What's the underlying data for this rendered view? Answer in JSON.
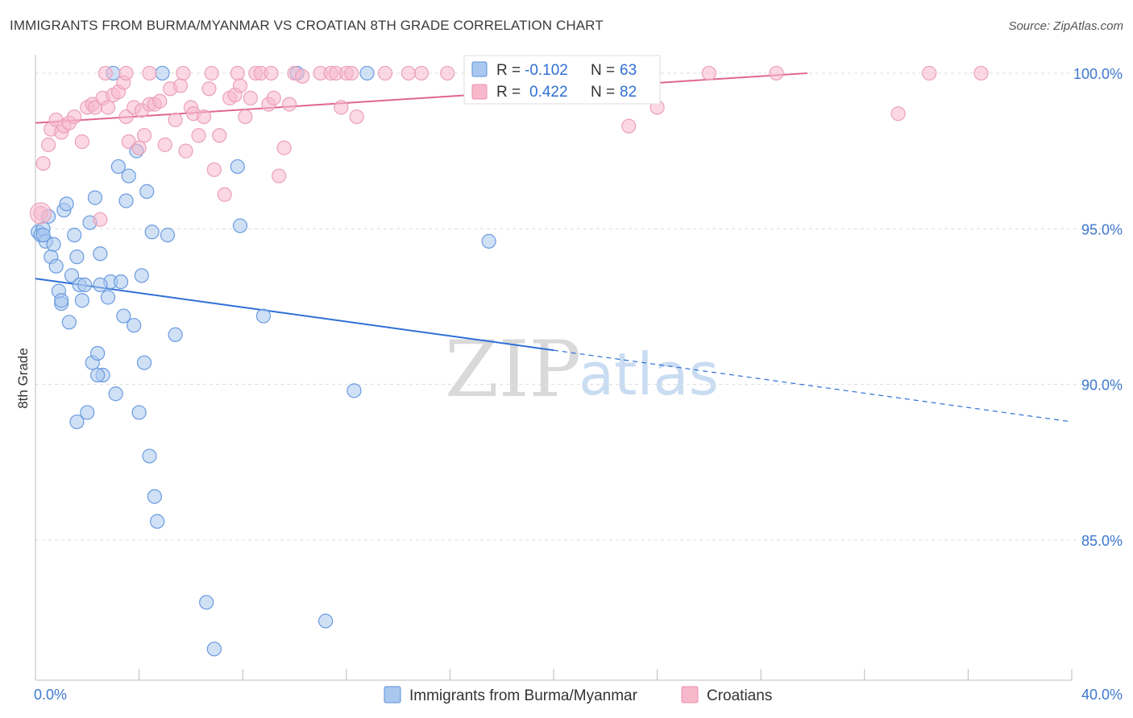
{
  "title": "IMMIGRANTS FROM BURMA/MYANMAR VS CROATIAN 8TH GRADE CORRELATION CHART",
  "source": "Source: ZipAtlas.com",
  "watermark": {
    "zip": "ZIP",
    "atlas": "atlas"
  },
  "colors": {
    "blue": "#2f6fd6",
    "blue_fill": "#aac8ef",
    "pink": "#e0668e",
    "pink_fill": "#f7b8cc",
    "grid": "#dddddd",
    "axis": "#bbbbbb"
  },
  "stats": [
    {
      "r_label": "R =",
      "r_value": "-0.102",
      "n_label": "N =",
      "n_value": "63"
    },
    {
      "r_label": "R =",
      "r_value": "0.422",
      "n_label": "N =",
      "n_value": "82"
    }
  ],
  "chart_data": {
    "type": "scatter",
    "title": "IMMIGRANTS FROM BURMA/MYANMAR VS CROATIAN 8TH GRADE CORRELATION CHART",
    "xlabel": "",
    "ylabel": "8th Grade",
    "xlim": [
      0,
      40
    ],
    "ylim": [
      80.5,
      100.8
    ],
    "x_tick_labels": [
      "0.0%",
      "40.0%"
    ],
    "y_ticks": [
      85,
      90,
      95,
      100
    ],
    "y_tick_labels": [
      "85.0%",
      "90.0%",
      "95.0%",
      "100.0%"
    ],
    "legend": [
      "Immigrants from Burma/Myanmar",
      "Croatians"
    ],
    "series": [
      {
        "name": "Immigrants from Burma/Myanmar",
        "trend": {
          "x0": 0,
          "y0": 93.4,
          "x1": 20,
          "y1": 91.1,
          "dashed_to_x": 40,
          "dashed_to_y": 88.8
        },
        "points": [
          [
            3.0,
            100
          ],
          [
            4.9,
            100
          ],
          [
            10.1,
            100
          ],
          [
            12.8,
            100
          ],
          [
            0.1,
            94.9
          ],
          [
            0.2,
            94.8
          ],
          [
            0.3,
            95.0
          ],
          [
            0.4,
            94.6
          ],
          [
            0.5,
            95.4
          ],
          [
            0.6,
            94.1
          ],
          [
            0.7,
            94.5
          ],
          [
            0.8,
            93.8
          ],
          [
            0.9,
            93.0
          ],
          [
            1.0,
            92.6
          ],
          [
            1.1,
            95.6
          ],
          [
            1.2,
            95.8
          ],
          [
            1.3,
            92.0
          ],
          [
            1.4,
            93.5
          ],
          [
            1.5,
            94.8
          ],
          [
            1.6,
            94.1
          ],
          [
            1.7,
            93.2
          ],
          [
            1.8,
            92.7
          ],
          [
            1.9,
            93.2
          ],
          [
            2.0,
            89.1
          ],
          [
            2.1,
            95.2
          ],
          [
            2.2,
            90.7
          ],
          [
            2.3,
            96.0
          ],
          [
            2.4,
            91.0
          ],
          [
            2.5,
            94.2
          ],
          [
            2.6,
            90.3
          ],
          [
            2.8,
            92.8
          ],
          [
            2.9,
            93.3
          ],
          [
            3.1,
            89.7
          ],
          [
            3.2,
            97.0
          ],
          [
            3.3,
            93.3
          ],
          [
            3.4,
            92.2
          ],
          [
            3.5,
            95.9
          ],
          [
            3.6,
            96.7
          ],
          [
            3.8,
            91.9
          ],
          [
            3.9,
            97.5
          ],
          [
            4.0,
            89.1
          ],
          [
            4.1,
            93.5
          ],
          [
            4.2,
            90.7
          ],
          [
            4.3,
            96.2
          ],
          [
            4.4,
            87.7
          ],
          [
            4.5,
            94.9
          ],
          [
            4.6,
            86.4
          ],
          [
            4.7,
            85.6
          ],
          [
            5.1,
            94.8
          ],
          [
            5.4,
            91.6
          ],
          [
            6.6,
            83.0
          ],
          [
            6.9,
            81.5
          ],
          [
            7.8,
            97.0
          ],
          [
            7.9,
            95.1
          ],
          [
            8.8,
            92.2
          ],
          [
            11.2,
            82.4
          ],
          [
            12.3,
            89.8
          ],
          [
            17.5,
            94.6
          ],
          [
            1.6,
            88.8
          ],
          [
            2.4,
            90.3
          ],
          [
            0.3,
            94.8
          ],
          [
            1.0,
            92.7
          ],
          [
            2.5,
            93.2
          ]
        ]
      },
      {
        "name": "Croatians",
        "trend": {
          "x0": 0,
          "y0": 98.4,
          "x1": 29.8,
          "y1": 100.0
        },
        "points": [
          [
            0.2,
            95.5
          ],
          [
            0.3,
            97.1
          ],
          [
            0.5,
            97.7
          ],
          [
            0.6,
            98.2
          ],
          [
            0.8,
            98.5
          ],
          [
            1.0,
            98.1
          ],
          [
            1.1,
            98.3
          ],
          [
            1.3,
            98.4
          ],
          [
            1.5,
            98.6
          ],
          [
            1.8,
            97.8
          ],
          [
            2.0,
            98.9
          ],
          [
            2.2,
            99.0
          ],
          [
            2.3,
            98.9
          ],
          [
            2.5,
            95.3
          ],
          [
            2.6,
            99.2
          ],
          [
            2.8,
            98.9
          ],
          [
            3.0,
            99.3
          ],
          [
            3.2,
            99.4
          ],
          [
            3.4,
            99.7
          ],
          [
            3.5,
            98.6
          ],
          [
            3.6,
            97.8
          ],
          [
            3.8,
            98.9
          ],
          [
            4.0,
            97.6
          ],
          [
            4.1,
            98.8
          ],
          [
            4.2,
            98.0
          ],
          [
            4.4,
            99.0
          ],
          [
            4.6,
            99.0
          ],
          [
            4.8,
            99.1
          ],
          [
            5.0,
            97.7
          ],
          [
            5.2,
            99.5
          ],
          [
            5.4,
            98.5
          ],
          [
            5.6,
            99.6
          ],
          [
            5.8,
            97.5
          ],
          [
            6.0,
            98.9
          ],
          [
            6.1,
            98.7
          ],
          [
            6.3,
            98.0
          ],
          [
            6.5,
            98.6
          ],
          [
            6.7,
            99.5
          ],
          [
            6.9,
            96.9
          ],
          [
            7.1,
            98.0
          ],
          [
            7.3,
            96.1
          ],
          [
            7.5,
            99.2
          ],
          [
            7.7,
            99.3
          ],
          [
            7.9,
            99.6
          ],
          [
            8.1,
            98.6
          ],
          [
            8.3,
            99.2
          ],
          [
            8.5,
            100
          ],
          [
            8.7,
            100
          ],
          [
            9.0,
            99.0
          ],
          [
            9.2,
            99.2
          ],
          [
            9.4,
            96.7
          ],
          [
            9.6,
            97.6
          ],
          [
            9.8,
            99.0
          ],
          [
            10.0,
            100
          ],
          [
            11.0,
            100
          ],
          [
            11.4,
            100
          ],
          [
            11.6,
            100
          ],
          [
            11.8,
            98.9
          ],
          [
            12.0,
            100
          ],
          [
            12.2,
            100
          ],
          [
            12.4,
            98.6
          ],
          [
            14.4,
            100
          ],
          [
            14.9,
            100
          ],
          [
            15.9,
            100
          ],
          [
            17.4,
            100
          ],
          [
            18.2,
            100
          ],
          [
            22.9,
            98.3
          ],
          [
            24.0,
            98.9
          ],
          [
            26.0,
            100
          ],
          [
            28.6,
            100
          ],
          [
            33.3,
            98.7
          ],
          [
            34.5,
            100
          ],
          [
            36.5,
            100
          ],
          [
            2.7,
            100
          ],
          [
            3.5,
            100
          ],
          [
            4.4,
            100
          ],
          [
            5.7,
            100
          ],
          [
            6.8,
            100
          ],
          [
            7.8,
            100
          ],
          [
            9.1,
            100
          ],
          [
            10.3,
            99.9
          ],
          [
            13.5,
            100
          ]
        ]
      }
    ]
  }
}
